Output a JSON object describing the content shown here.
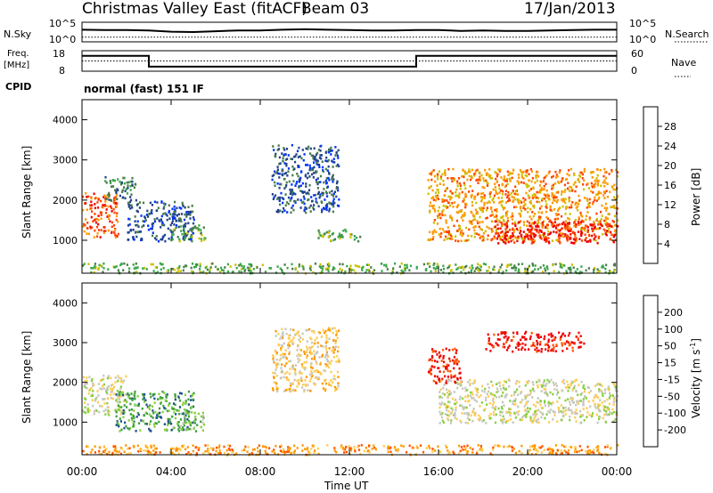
{
  "chart_data": [
    {
      "type": "line",
      "title": "Christmas Valley East (fitACF)",
      "beam": "Beam 03",
      "date": "17/Jan/2013",
      "panel": "N.Sky / N.Search",
      "left_label": "N.Sky",
      "right_label": "N.Search",
      "left_ticks": [
        "10^5",
        "10^0"
      ],
      "right_ticks": [
        "10^5",
        "10^0"
      ],
      "series": [
        {
          "name": "N.Sky",
          "x_hours": [
            0,
            1,
            2,
            3,
            4,
            5,
            6,
            7,
            8,
            9,
            10,
            11,
            12,
            13,
            14,
            15,
            16,
            17,
            18,
            19,
            20,
            21,
            22,
            23,
            24
          ],
          "values_log10": [
            3.1,
            3.0,
            3.0,
            2.9,
            2.6,
            2.5,
            2.7,
            2.9,
            2.9,
            3.1,
            3.2,
            3.1,
            3.0,
            2.9,
            2.9,
            3.0,
            3.0,
            2.8,
            2.9,
            2.8,
            2.8,
            2.9,
            3.0,
            3.1,
            3.1
          ]
        },
        {
          "name": "N.Search",
          "style": "dotted",
          "x_hours": [
            0,
            24
          ],
          "values_log10": [
            1.2,
            1.2
          ]
        }
      ]
    },
    {
      "type": "line",
      "panel": "Freq. / Nave",
      "left_label": "Freq.",
      "left_unit": "[MHz]",
      "right_label": "Nave",
      "left_ticks": [
        "18",
        "8"
      ],
      "right_ticks": [
        "60",
        "0"
      ],
      "ylim_left": [
        8,
        18
      ],
      "ylim_right": [
        0,
        60
      ],
      "series": [
        {
          "name": "Freq.",
          "x_hours": [
            0,
            3,
            3,
            15,
            15,
            24
          ],
          "values": [
            15.5,
            15.5,
            10.2,
            10.2,
            15.5,
            15.5
          ]
        },
        {
          "name": "Nave",
          "style": "dotted",
          "x_hours": [
            0,
            24
          ],
          "values": [
            30,
            30
          ]
        }
      ]
    },
    {
      "type": "table",
      "panel": "CPID",
      "label": "CPID",
      "text": "normal (fast) 151 IF"
    },
    {
      "type": "heatmap",
      "panel": "Power",
      "ylabel": "Slant Range [km]",
      "ylim": [
        180,
        4500
      ],
      "yticks": [
        1000,
        2000,
        3000,
        4000
      ],
      "colorbar_label": "Power [dB]",
      "colorbar_ticks": [
        "4",
        "8",
        "12",
        "16",
        "20",
        "24",
        "28"
      ],
      "colorbar_colors": [
        "#0033ff",
        "#224488",
        "#4a7c4a",
        "#3aa84a",
        "#ccc000",
        "#ff9900",
        "#ff4400",
        "#ee0000"
      ],
      "features": [
        {
          "t": [
            0.0,
            1.6
          ],
          "range": [
            1100,
            2200
          ],
          "level": 6
        },
        {
          "t": [
            1.0,
            2.4
          ],
          "range": [
            2000,
            2600
          ],
          "level": 2
        },
        {
          "t": [
            2.0,
            5.0
          ],
          "range": [
            1000,
            2000
          ],
          "level": 1
        },
        {
          "t": [
            4.0,
            5.5
          ],
          "range": [
            1000,
            1400
          ],
          "level": 3
        },
        {
          "t": [
            8.5,
            11.5
          ],
          "range": [
            1700,
            3400
          ],
          "level": 1
        },
        {
          "t": [
            10.5,
            12.5
          ],
          "range": [
            1000,
            1300
          ],
          "level": 3
        },
        {
          "t": [
            15.5,
            24.0
          ],
          "range": [
            1000,
            2800
          ],
          "level": 5
        },
        {
          "t": [
            18.5,
            24.0
          ],
          "range": [
            950,
            1500
          ],
          "level": 7
        },
        {
          "t": [
            0.0,
            24.0
          ],
          "range": [
            200,
            450
          ],
          "level": 3
        }
      ]
    },
    {
      "type": "heatmap",
      "panel": "Velocity",
      "ylabel": "Slant Range [km]",
      "ylim": [
        180,
        4500
      ],
      "yticks": [
        1000,
        2000,
        3000,
        4000
      ],
      "xlabel": "Time UT",
      "xticks": [
        "00:00",
        "04:00",
        "08:00",
        "12:00",
        "16:00",
        "20:00",
        "00:00"
      ],
      "colorbar_label": "Velocity [m s",
      "colorbar_label_sup": "-1",
      "colorbar_ticks": [
        "-200",
        "-100",
        "-50",
        "-15",
        "15",
        "50",
        "100",
        "200"
      ],
      "colorbar_colors": [
        "#ee0000",
        "#ff5500",
        "#ff9900",
        "#ffcc55",
        "#c8c8c0",
        "#88d040",
        "#40a040",
        "#205090",
        "#1030c0"
      ],
      "features": [
        {
          "t": [
            0.0,
            2.0
          ],
          "range": [
            1200,
            2200
          ],
          "level": 4
        },
        {
          "t": [
            1.5,
            5.0
          ],
          "range": [
            800,
            1800
          ],
          "level": 6
        },
        {
          "t": [
            4.0,
            5.5
          ],
          "range": [
            800,
            1300
          ],
          "level": 5
        },
        {
          "t": [
            8.5,
            11.5
          ],
          "range": [
            1800,
            3400
          ],
          "level": 3
        },
        {
          "t": [
            15.5,
            17.0
          ],
          "range": [
            2000,
            2900
          ],
          "level": 0
        },
        {
          "t": [
            16.0,
            24.0
          ],
          "range": [
            1000,
            2100
          ],
          "level": 4
        },
        {
          "t": [
            18.0,
            22.5
          ],
          "range": [
            2800,
            3300
          ],
          "level": 0
        },
        {
          "t": [
            0.0,
            24.0
          ],
          "range": [
            200,
            450
          ],
          "level": 2
        }
      ]
    }
  ]
}
